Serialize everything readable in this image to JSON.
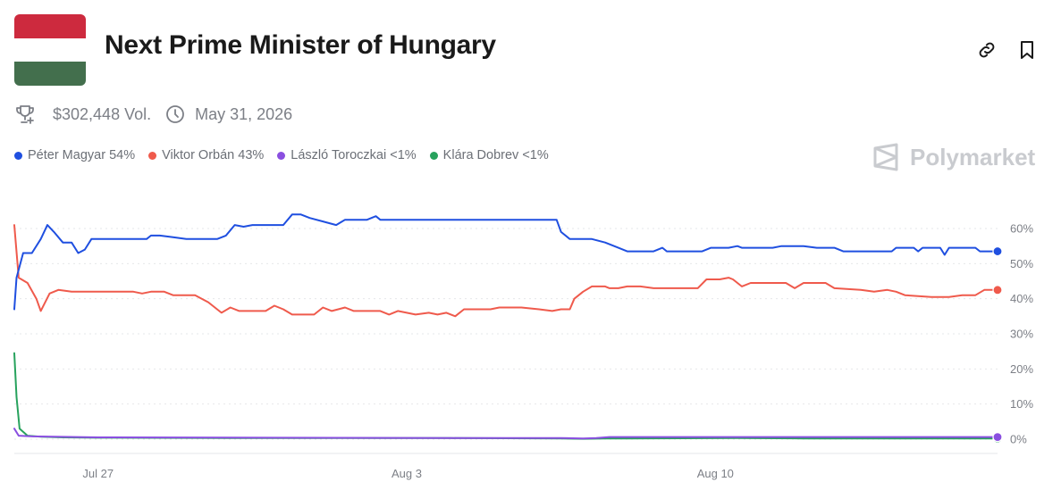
{
  "market": {
    "title": "Next Prime Minister of Hungary",
    "volume": "$302,448 Vol.",
    "end_date": "May 31, 2026",
    "brand": "Polymarket",
    "flag_colors": [
      "#cd2a3e",
      "#ffffff",
      "#436f4d"
    ]
  },
  "icons": {
    "trophy": "trophy-icon",
    "clock": "clock-icon",
    "link": "link-icon",
    "bookmark": "bookmark-icon"
  },
  "legend": [
    {
      "label": "Péter Magyar 54%",
      "color": "#1f4fe0"
    },
    {
      "label": "Viktor Orbán 43%",
      "color": "#ef5a4c"
    },
    {
      "label": "László Toroczkai <1%",
      "color": "#8a4fe0"
    },
    {
      "label": "Klára Dobrev <1%",
      "color": "#27a25d"
    }
  ],
  "chart_data": {
    "type": "line",
    "y_tick_labels": [
      "60%",
      "50%",
      "40%",
      "30%",
      "20%",
      "10%",
      "0%"
    ],
    "y_ticks": [
      60,
      50,
      40,
      30,
      20,
      10,
      0
    ],
    "ylim": [
      0,
      60
    ],
    "x_tick_labels": [
      "Jul 27",
      "Aug 3",
      "Aug 10"
    ],
    "x_ticks": [
      0,
      7,
      14
    ],
    "xlim": [
      -1.9,
      20.4
    ],
    "grid": true,
    "series": [
      {
        "name": "Péter Magyar",
        "color": "#1f4fe0",
        "points": [
          [
            -1.9,
            37
          ],
          [
            -1.85,
            46
          ],
          [
            -1.7,
            53
          ],
          [
            -1.5,
            53
          ],
          [
            -1.3,
            57
          ],
          [
            -1.15,
            61
          ],
          [
            -1,
            59
          ],
          [
            -0.8,
            56
          ],
          [
            -0.6,
            56
          ],
          [
            -0.45,
            53
          ],
          [
            -0.3,
            54
          ],
          [
            -0.15,
            57
          ],
          [
            0.5,
            57
          ],
          [
            0.6,
            57
          ],
          [
            1.1,
            57
          ],
          [
            1.2,
            58
          ],
          [
            1.4,
            58
          ],
          [
            1.7,
            57.5
          ],
          [
            2,
            57
          ],
          [
            2.7,
            57
          ],
          [
            2.9,
            58
          ],
          [
            3.1,
            61
          ],
          [
            3.3,
            60.5
          ],
          [
            3.5,
            61
          ],
          [
            4.2,
            61
          ],
          [
            4.4,
            64
          ],
          [
            4.6,
            64
          ],
          [
            4.8,
            63
          ],
          [
            5.1,
            62
          ],
          [
            5.4,
            61
          ],
          [
            5.6,
            62.5
          ],
          [
            6.1,
            62.5
          ],
          [
            6.3,
            63.5
          ],
          [
            6.4,
            62.5
          ],
          [
            10.4,
            62.5
          ],
          [
            10.5,
            59
          ],
          [
            10.7,
            57
          ],
          [
            11.2,
            57
          ],
          [
            11.5,
            56
          ],
          [
            11.8,
            54.5
          ],
          [
            12,
            53.5
          ],
          [
            12.6,
            53.5
          ],
          [
            12.8,
            54.5
          ],
          [
            12.9,
            53.5
          ],
          [
            13.6,
            53.5
          ],
          [
            13.7,
            53.5
          ],
          [
            13.9,
            54.5
          ],
          [
            14.3,
            54.5
          ],
          [
            14.5,
            55
          ],
          [
            14.6,
            54.5
          ],
          [
            15.3,
            54.5
          ],
          [
            15.5,
            55
          ],
          [
            16,
            55
          ],
          [
            16.3,
            54.5
          ],
          [
            16.7,
            54.5
          ],
          [
            16.9,
            53.5
          ],
          [
            18,
            53.5
          ],
          [
            18.1,
            54.5
          ],
          [
            18.5,
            54.5
          ],
          [
            18.6,
            53.5
          ],
          [
            18.7,
            54.5
          ],
          [
            19.1,
            54.5
          ],
          [
            19.2,
            52.5
          ],
          [
            19.3,
            54.5
          ],
          [
            19.9,
            54.5
          ],
          [
            20,
            53.5
          ],
          [
            20.4,
            53.5
          ]
        ]
      },
      {
        "name": "Viktor Orbán",
        "color": "#ef5a4c",
        "points": [
          [
            -1.9,
            61
          ],
          [
            -1.8,
            46
          ],
          [
            -1.6,
            44.5
          ],
          [
            -1.4,
            40
          ],
          [
            -1.3,
            36.5
          ],
          [
            -1.1,
            41.5
          ],
          [
            -0.9,
            42.5
          ],
          [
            -0.6,
            42
          ],
          [
            0.8,
            42
          ],
          [
            1,
            41.5
          ],
          [
            1.2,
            42
          ],
          [
            1.5,
            42
          ],
          [
            1.7,
            41
          ],
          [
            2.2,
            41
          ],
          [
            2.5,
            39
          ],
          [
            2.8,
            36
          ],
          [
            3,
            37.5
          ],
          [
            3.2,
            36.5
          ],
          [
            3.8,
            36.5
          ],
          [
            4,
            38
          ],
          [
            4.2,
            37
          ],
          [
            4.4,
            35.5
          ],
          [
            4.6,
            35.5
          ],
          [
            4.9,
            35.5
          ],
          [
            5.1,
            37.5
          ],
          [
            5.3,
            36.5
          ],
          [
            5.6,
            37.5
          ],
          [
            5.8,
            36.5
          ],
          [
            6.4,
            36.5
          ],
          [
            6.6,
            35.5
          ],
          [
            6.8,
            36.5
          ],
          [
            7.2,
            35.5
          ],
          [
            7.5,
            36
          ],
          [
            7.7,
            35.5
          ],
          [
            7.9,
            36
          ],
          [
            8.1,
            35
          ],
          [
            8.3,
            37
          ],
          [
            8.6,
            37
          ],
          [
            8.9,
            37
          ],
          [
            9.1,
            37.5
          ],
          [
            9.6,
            37.5
          ],
          [
            10,
            37
          ],
          [
            10.3,
            36.5
          ],
          [
            10.5,
            37
          ],
          [
            10.7,
            37
          ],
          [
            10.8,
            40
          ],
          [
            11,
            42
          ],
          [
            11.2,
            43.5
          ],
          [
            11.5,
            43.5
          ],
          [
            11.6,
            43
          ],
          [
            11.8,
            43
          ],
          [
            12,
            43.5
          ],
          [
            12.3,
            43.5
          ],
          [
            12.6,
            43
          ],
          [
            13.6,
            43
          ],
          [
            13.8,
            45.5
          ],
          [
            14.1,
            45.5
          ],
          [
            14.3,
            46
          ],
          [
            14.4,
            45.5
          ],
          [
            14.6,
            43.5
          ],
          [
            14.8,
            44.5
          ],
          [
            15.6,
            44.5
          ],
          [
            15.8,
            43
          ],
          [
            16,
            44.5
          ],
          [
            16.5,
            44.5
          ],
          [
            16.7,
            43
          ],
          [
            17.3,
            42.5
          ],
          [
            17.6,
            42
          ],
          [
            17.9,
            42.5
          ],
          [
            18.1,
            42
          ],
          [
            18.3,
            41
          ],
          [
            18.9,
            40.5
          ],
          [
            19.3,
            40.5
          ],
          [
            19.6,
            41
          ],
          [
            19.9,
            41
          ],
          [
            20.1,
            42.5
          ],
          [
            20.4,
            42.5
          ]
        ]
      },
      {
        "name": "László Toroczkai",
        "color": "#8a4fe0",
        "points": [
          [
            -1.9,
            3
          ],
          [
            -1.8,
            1
          ],
          [
            -1.5,
            0.8
          ],
          [
            -1,
            0.7
          ],
          [
            0,
            0.5
          ],
          [
            4,
            0.4
          ],
          [
            8,
            0.3
          ],
          [
            10.5,
            0.3
          ],
          [
            11,
            0.2
          ],
          [
            11.3,
            0.3
          ],
          [
            11.6,
            0.6
          ],
          [
            12,
            0.6
          ],
          [
            20.4,
            0.6
          ]
        ]
      },
      {
        "name": "Klára Dobrev",
        "color": "#27a25d",
        "points": [
          [
            -1.9,
            24.5
          ],
          [
            -1.85,
            12
          ],
          [
            -1.78,
            3
          ],
          [
            -1.6,
            1
          ],
          [
            -1.3,
            0.7
          ],
          [
            -0.8,
            0.5
          ],
          [
            0,
            0.4
          ],
          [
            4,
            0.3
          ],
          [
            8,
            0.3
          ],
          [
            10.5,
            0.2
          ],
          [
            11,
            0.1
          ],
          [
            11.5,
            0.2
          ],
          [
            12,
            0.2
          ],
          [
            14.5,
            0.3
          ],
          [
            16,
            0.2
          ],
          [
            20.4,
            0.2
          ]
        ]
      }
    ]
  }
}
